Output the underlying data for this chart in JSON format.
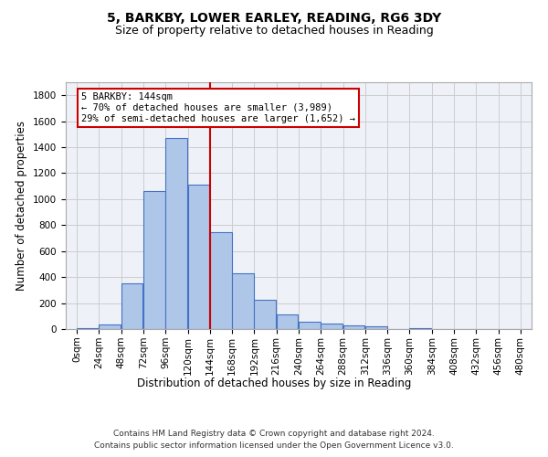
{
  "title": "5, BARKBY, LOWER EARLEY, READING, RG6 3DY",
  "subtitle": "Size of property relative to detached houses in Reading",
  "xlabel": "Distribution of detached houses by size in Reading",
  "ylabel": "Number of detached properties",
  "bin_labels": [
    "0sqm",
    "24sqm",
    "48sqm",
    "72sqm",
    "96sqm",
    "120sqm",
    "144sqm",
    "168sqm",
    "192sqm",
    "216sqm",
    "240sqm",
    "264sqm",
    "288sqm",
    "312sqm",
    "336sqm",
    "360sqm",
    "384sqm",
    "408sqm",
    "432sqm",
    "456sqm",
    "480sqm"
  ],
  "bar_values": [
    10,
    35,
    350,
    1060,
    1470,
    1110,
    745,
    430,
    225,
    110,
    55,
    45,
    30,
    20,
    0,
    5,
    0,
    0,
    0,
    0,
    0
  ],
  "bar_color": "#aec6e8",
  "bar_edge_color": "#4472c4",
  "property_line_x": 144,
  "annotation_text": "5 BARKBY: 144sqm\n← 70% of detached houses are smaller (3,989)\n29% of semi-detached houses are larger (1,652) →",
  "annotation_box_color": "#ffffff",
  "annotation_box_edge_color": "#cc0000",
  "vline_color": "#cc0000",
  "ylim": [
    0,
    1900
  ],
  "xlim": [
    -12,
    492
  ],
  "yticks": [
    0,
    200,
    400,
    600,
    800,
    1000,
    1200,
    1400,
    1600,
    1800
  ],
  "grid_color": "#cccccc",
  "bg_color": "#eef2f8",
  "footnote_line1": "Contains HM Land Registry data © Crown copyright and database right 2024.",
  "footnote_line2": "Contains public sector information licensed under the Open Government Licence v3.0.",
  "title_fontsize": 10,
  "subtitle_fontsize": 9,
  "axis_label_fontsize": 8.5,
  "tick_fontsize": 7.5,
  "annotation_fontsize": 7.5,
  "footnote_fontsize": 6.5
}
